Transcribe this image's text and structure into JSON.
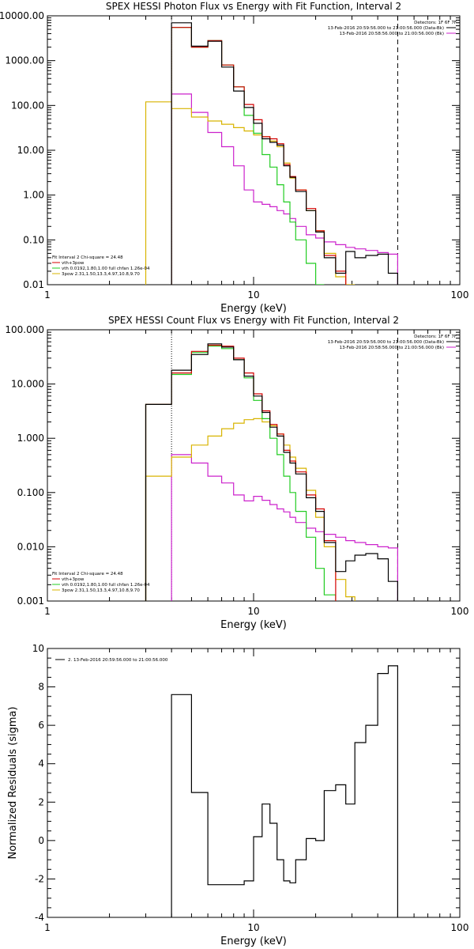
{
  "colors": {
    "black": "#000000",
    "red": "#d40000",
    "green": "#22cc22",
    "yellow": "#d8b400",
    "magenta": "#cc22cc"
  },
  "chart_data": [
    {
      "type": "line",
      "title": "SPEX HESSI Photon Flux vs Energy with Fit Function, Interval 2",
      "xlabel": "Energy (keV)",
      "ylabel": "",
      "xscale": "log",
      "yscale": "log",
      "xlim": [
        1,
        100
      ],
      "ylim": [
        0.01,
        10000
      ],
      "xticklabels": [
        "1",
        "10",
        "100"
      ],
      "yticklabels": [
        "0.01",
        "0.10",
        "1.00",
        "10.00",
        "100.00",
        "1000.00",
        "10000.00"
      ],
      "energy_bins": [
        3.0,
        4.0,
        5.0,
        6.0,
        7.0,
        8.0,
        9.0,
        10.0,
        11.0,
        12.0,
        13.0,
        14.0,
        15.0,
        16.0,
        18.0,
        20.0,
        22.0,
        25.0,
        28.0,
        31.0,
        35.0,
        40.0,
        45.0,
        50.0
      ],
      "series": [
        {
          "name": "",
          "color": "black",
          "values": [
            null,
            7000,
            2100,
            2700,
            720,
            210,
            90,
            40,
            18,
            15,
            13,
            4.5,
            2.5,
            1.2,
            0.45,
            0.15,
            0.04,
            0.018,
            0.055,
            0.04,
            0.045,
            0.048,
            0.018
          ]
        },
        {
          "name": "vth+3pow",
          "color": "red",
          "values": [
            null,
            5500,
            2000,
            2800,
            800,
            260,
            105,
            48,
            20,
            18,
            14,
            4.8,
            2.6,
            1.3,
            0.5,
            0.16,
            0.045,
            0.02
          ]
        },
        {
          "name": "vth 0.0192,1.80,1.00  full chfan 1.26e-04",
          "color": "green",
          "values": [
            null,
            5500,
            2000,
            2800,
            800,
            260,
            60,
            24,
            8,
            4.2,
            1.7,
            0.7,
            0.25,
            0.1,
            0.03,
            0.01
          ]
        },
        {
          "name": "3pow 2.31,1.50,13.3,4.97,10.8,9.70",
          "color": "yellow",
          "values": [
            120,
            85,
            55,
            45,
            38,
            32,
            27,
            22,
            20,
            16,
            12,
            5.2,
            2.4,
            1.3,
            0.45,
            0.16,
            0.05,
            0.015,
            0.01
          ]
        },
        {
          "name": "",
          "color": "magenta",
          "values": [
            null,
            180,
            70,
            25,
            12,
            4.5,
            1.3,
            0.7,
            0.62,
            0.55,
            0.45,
            0.38,
            0.3,
            0.2,
            0.13,
            0.11,
            0.09,
            0.078,
            0.068,
            0.063,
            0.058,
            0.052,
            0.048
          ]
        }
      ],
      "legend_header": "Detectors: 1F 6F 7F",
      "legend_right": [
        {
          "text": "13-Feb-2016 20:59:56.000 to 21:00:56.000 (Data-Bk)",
          "color": "black"
        },
        {
          "text": "13-Feb-2016 20:58:56.000 to 21:00:56.000 (Bk)",
          "color": "magenta"
        }
      ],
      "legend_left": [
        {
          "text": "Fit Interval 2   Chi-square = 24.48",
          "color": "black"
        },
        {
          "text": "vth+3pow",
          "color": "red"
        },
        {
          "text": "vth 0.0192,1.80,1.00  full chfan 1.26e-04",
          "color": "green"
        },
        {
          "text": "3pow 2.31,1.50,13.3,4.97,10.8,9.70",
          "color": "yellow"
        }
      ],
      "legend_placement": "top-right, bottom-left",
      "grid": false,
      "fit_range_keV": [
        4.0,
        50.0
      ]
    },
    {
      "type": "line",
      "title": "SPEX HESSI Count Flux vs Energy with Fit Function, Interval 2",
      "xlabel": "Energy (keV)",
      "ylabel": "",
      "xscale": "log",
      "yscale": "log",
      "xlim": [
        1,
        100
      ],
      "ylim": [
        0.001,
        100
      ],
      "xticklabels": [
        "1",
        "10",
        "100"
      ],
      "yticklabels": [
        "0.001",
        "0.010",
        "0.100",
        "1.000",
        "10.000",
        "100.000"
      ],
      "energy_bins": [
        3.0,
        4.0,
        5.0,
        6.0,
        7.0,
        8.0,
        9.0,
        10.0,
        11.0,
        12.0,
        13.0,
        14.0,
        15.0,
        16.0,
        18.0,
        20.0,
        22.0,
        25.0,
        28.0,
        31.0,
        35.0,
        40.0,
        45.0,
        50.0
      ],
      "series": [
        {
          "name": "",
          "color": "black",
          "values": [
            4.2,
            18,
            35,
            55,
            48,
            28,
            14,
            6,
            3,
            1.6,
            1.1,
            0.55,
            0.35,
            0.22,
            0.08,
            0.045,
            0.012,
            0.0035,
            0.0055,
            0.007,
            0.0075,
            0.006,
            0.0023
          ]
        },
        {
          "name": "vth+3pow",
          "color": "red",
          "values": [
            4.2,
            16,
            40,
            52,
            50,
            30,
            16,
            6.6,
            3.2,
            1.8,
            1.2,
            0.6,
            0.38,
            0.24,
            0.09,
            0.05,
            0.013
          ]
        },
        {
          "name": "vth 0.0192,1.80,1.00  full chfan 1.26e-04",
          "color": "green",
          "values": [
            4.2,
            15,
            38,
            50,
            45,
            28,
            13,
            5,
            2.3,
            1.0,
            0.5,
            0.2,
            0.1,
            0.045,
            0.015,
            0.004,
            0.0013
          ]
        },
        {
          "name": "3pow 2.31,1.50,13.3,4.97,10.8,9.70",
          "color": "yellow",
          "values": [
            0.2,
            0.45,
            0.75,
            1.1,
            1.5,
            1.9,
            2.2,
            2.3,
            2.0,
            1.7,
            1.2,
            0.75,
            0.45,
            0.28,
            0.11,
            0.035,
            0.01,
            0.0025,
            0.0012
          ]
        },
        {
          "name": "",
          "color": "magenta",
          "values": [
            null,
            0.5,
            0.35,
            0.2,
            0.15,
            0.09,
            0.07,
            0.085,
            0.072,
            0.06,
            0.05,
            0.044,
            0.035,
            0.028,
            0.022,
            0.019,
            0.017,
            0.015,
            0.013,
            0.012,
            0.011,
            0.01,
            0.0095
          ]
        }
      ],
      "legend_header": "Detectors: 1F 6F 7F",
      "legend_right": [
        {
          "text": "13-Feb-2016 20:59:56.000 to 21:00:56.000 (Data-Bk)",
          "color": "black"
        },
        {
          "text": "13-Feb-2016 20:58:56.000 to 21:00:56.000 (Bk)",
          "color": "magenta"
        }
      ],
      "legend_left": [
        {
          "text": "Fit Interval 2   Chi-square = 24.48",
          "color": "black"
        },
        {
          "text": "vth+3pow",
          "color": "red"
        },
        {
          "text": "vth 0.0192,1.80,1.00  full chfan 1.26e-04",
          "color": "green"
        },
        {
          "text": "3pow 2.31,1.50,13.3,4.97,10.8,9.70",
          "color": "yellow"
        }
      ],
      "legend_placement": "top-right, bottom-left",
      "grid": false,
      "fit_range_keV": [
        4.0,
        50.0
      ]
    },
    {
      "type": "line",
      "title": "",
      "xlabel": "Energy (keV)",
      "ylabel": "Normalized Residuals (sigma)",
      "xscale": "log",
      "yscale": "linear",
      "xlim": [
        1,
        100
      ],
      "ylim": [
        -4,
        10
      ],
      "xticklabels": [
        "1",
        "10",
        "100"
      ],
      "yticklabels": [
        "-4",
        "-2",
        "0",
        "2",
        "4",
        "6",
        "8",
        "10"
      ],
      "energy_bins": [
        4.0,
        5.0,
        6.0,
        7.0,
        8.0,
        9.0,
        10.0,
        11.0,
        12.0,
        13.0,
        14.0,
        15.0,
        16.0,
        18.0,
        20.0,
        22.0,
        25.0,
        28.0,
        31.0,
        35.0,
        40.0,
        45.0,
        50.0
      ],
      "series": [
        {
          "name": "2. 13-Feb-2016 20:59:56.000 to 21:00:56.000",
          "color": "black",
          "values": [
            7.6,
            2.5,
            -2.3,
            -2.3,
            -2.3,
            -2.1,
            0.2,
            1.9,
            0.9,
            -1.0,
            -2.1,
            -2.2,
            -1.0,
            0.1,
            0.0,
            2.6,
            2.9,
            1.9,
            5.1,
            6.0,
            8.7,
            9.1,
            3.0
          ]
        }
      ],
      "legend": [
        {
          "text": "2. 13-Feb-2016 20:59:56.000 to 21:00:56.000",
          "color": "black"
        }
      ],
      "legend_placement": "top-left",
      "grid": false
    }
  ]
}
